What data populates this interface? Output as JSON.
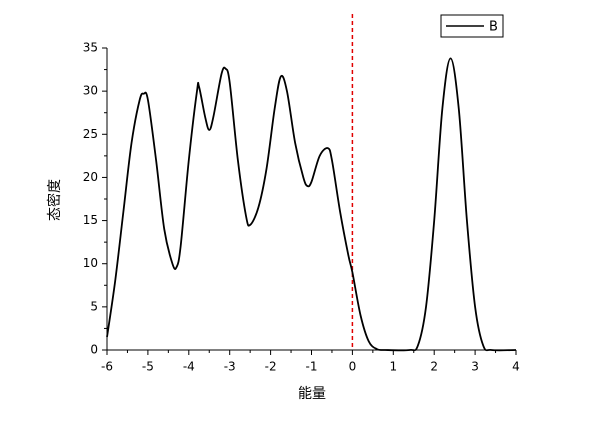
{
  "chart_data": {
    "type": "line",
    "xlabel": "能量",
    "ylabel": "态密度",
    "x": [
      -6,
      -5.8,
      -5.6,
      -5.4,
      -5.2,
      -5.1,
      -5.0,
      -4.8,
      -4.6,
      -4.4,
      -4.3,
      -4.2,
      -4.0,
      -3.8,
      -3.75,
      -3.6,
      -3.5,
      -3.4,
      -3.2,
      -3.1,
      -3.0,
      -2.8,
      -2.6,
      -2.5,
      -2.3,
      -2.1,
      -1.9,
      -1.75,
      -1.6,
      -1.4,
      -1.2,
      -1.1,
      -1.0,
      -0.8,
      -0.6,
      -0.5,
      -0.3,
      -0.1,
      0,
      0.2,
      0.4,
      0.6,
      0.8,
      1.4,
      1.6,
      1.8,
      2.0,
      2.2,
      2.4,
      2.6,
      2.8,
      3.0,
      3.2,
      3.4,
      4.0
    ],
    "series": [
      {
        "name": "B",
        "color": "#000000",
        "values": [
          1.5,
          8,
          16,
          24,
          29,
          29.7,
          29,
          22,
          14,
          10,
          9.6,
          12,
          22,
          30,
          30.5,
          27,
          25.5,
          27,
          32,
          32.6,
          31,
          22,
          15.5,
          14.5,
          16.5,
          21,
          28,
          31.7,
          30,
          24,
          20,
          19,
          19.5,
          22.5,
          23.4,
          22,
          16,
          11,
          9,
          4,
          1,
          0.1,
          0,
          0,
          0.5,
          5,
          15,
          28,
          33.8,
          28,
          15,
          5,
          0.5,
          0,
          0
        ]
      }
    ],
    "xlim": [
      -6,
      4
    ],
    "xticks": [
      -6,
      -5,
      -4,
      -3,
      -2,
      -1,
      0,
      1,
      2,
      3,
      4
    ],
    "xminorticks": [
      -5.5,
      -4.5,
      -3.5,
      -2.5,
      -1.5,
      -0.5,
      0.5,
      1.5,
      2.5,
      3.5
    ],
    "ylim": [
      0,
      35
    ],
    "yticks": [
      0,
      5,
      10,
      15,
      20,
      25,
      30,
      35
    ],
    "yminorticks": [
      2.5,
      7.5,
      12.5,
      17.5,
      22.5,
      27.5,
      32.5
    ],
    "vline": {
      "x": 0,
      "color": "#e00000"
    },
    "legend": "upper right"
  }
}
